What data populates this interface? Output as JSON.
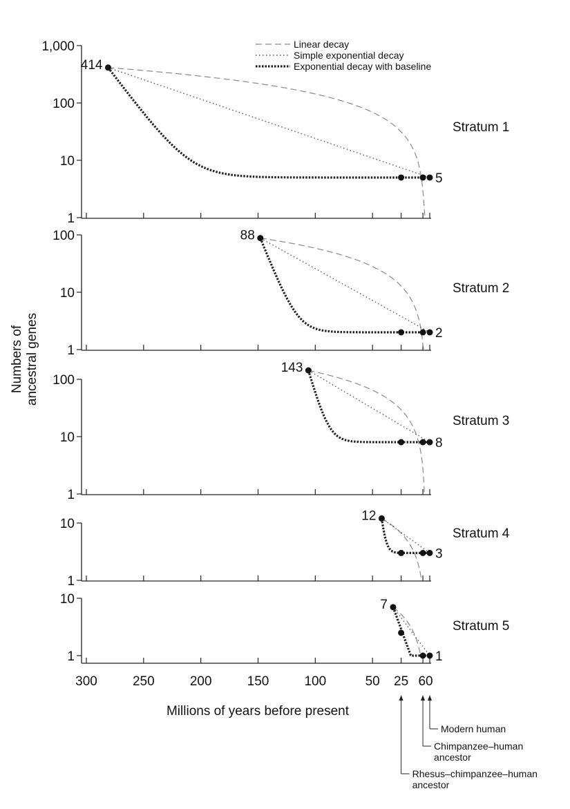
{
  "chart_data": {
    "type": "line",
    "ylabel": "Numbers of ancestral genes",
    "xlabel": "Millions of years before present",
    "x_ticks": [
      {
        "value": 300,
        "label": "300"
      },
      {
        "value": 250,
        "label": "250"
      },
      {
        "value": 200,
        "label": "200"
      },
      {
        "value": 150,
        "label": "150"
      },
      {
        "value": 100,
        "label": "100"
      },
      {
        "value": 50,
        "label": "50"
      },
      {
        "value": 25,
        "label": "25"
      },
      {
        "value": 6,
        "label": "6"
      },
      {
        "value": 0,
        "label": "0"
      }
    ],
    "xlim": [
      300,
      0
    ],
    "yscale": "log",
    "legend": {
      "placement": "top-right",
      "entries": [
        {
          "name": "Linear decay",
          "style": "dashed"
        },
        {
          "name": "Simple exponential decay",
          "style": "dotted"
        },
        {
          "name": "Exponential decay with baseline",
          "style": "thick-dotted"
        }
      ]
    },
    "panels": [
      {
        "name": "Stratum 1",
        "ylim": [
          1,
          1000
        ],
        "y_ticks": [
          "1",
          "10",
          "100",
          "1,000"
        ],
        "start": {
          "x": 281,
          "y": 414,
          "label": "414"
        },
        "end_value": 5,
        "end_label": "5",
        "points": [
          {
            "x": 25,
            "y": 5
          },
          {
            "x": 6,
            "y": 5
          },
          {
            "x": 0,
            "y": 5
          }
        ]
      },
      {
        "name": "Stratum 2",
        "ylim": [
          1,
          100
        ],
        "y_ticks": [
          "1",
          "10",
          "100"
        ],
        "start": {
          "x": 148,
          "y": 88,
          "label": "88"
        },
        "end_value": 2,
        "end_label": "2",
        "points": [
          {
            "x": 25,
            "y": 2
          },
          {
            "x": 6,
            "y": 2
          },
          {
            "x": 0,
            "y": 2
          }
        ]
      },
      {
        "name": "Stratum 3",
        "ylim": [
          1,
          100
        ],
        "y_ticks": [
          "1",
          "10",
          "100"
        ],
        "start": {
          "x": 106,
          "y": 143,
          "label": "143"
        },
        "end_value": 8,
        "end_label": "8",
        "points": [
          {
            "x": 25,
            "y": 8
          },
          {
            "x": 6,
            "y": 8
          },
          {
            "x": 0,
            "y": 8
          }
        ]
      },
      {
        "name": "Stratum 4",
        "ylim": [
          1,
          10
        ],
        "y_ticks": [
          "1",
          "10"
        ],
        "start": {
          "x": 42,
          "y": 12,
          "label": "12"
        },
        "end_value": 3,
        "end_label": "3",
        "points": [
          {
            "x": 25,
            "y": 3
          },
          {
            "x": 6,
            "y": 3
          },
          {
            "x": 0,
            "y": 3
          }
        ]
      },
      {
        "name": "Stratum 5",
        "ylim": [
          1,
          10
        ],
        "y_ticks": [
          "1",
          "10"
        ],
        "start": {
          "x": 32,
          "y": 7,
          "label": "7"
        },
        "end_value": 1,
        "end_label": "1",
        "points": [
          {
            "x": 25,
            "y": 2.5
          },
          {
            "x": 6,
            "y": 1
          },
          {
            "x": 0,
            "y": 1
          }
        ]
      }
    ],
    "annotations": [
      {
        "x": 0,
        "text": [
          "Modern human"
        ]
      },
      {
        "x": 6,
        "text": [
          "Chimpanzee–human",
          "ancestor"
        ]
      },
      {
        "x": 25,
        "text": [
          "Rhesus–chimpanzee–human",
          "ancestor"
        ]
      }
    ]
  }
}
